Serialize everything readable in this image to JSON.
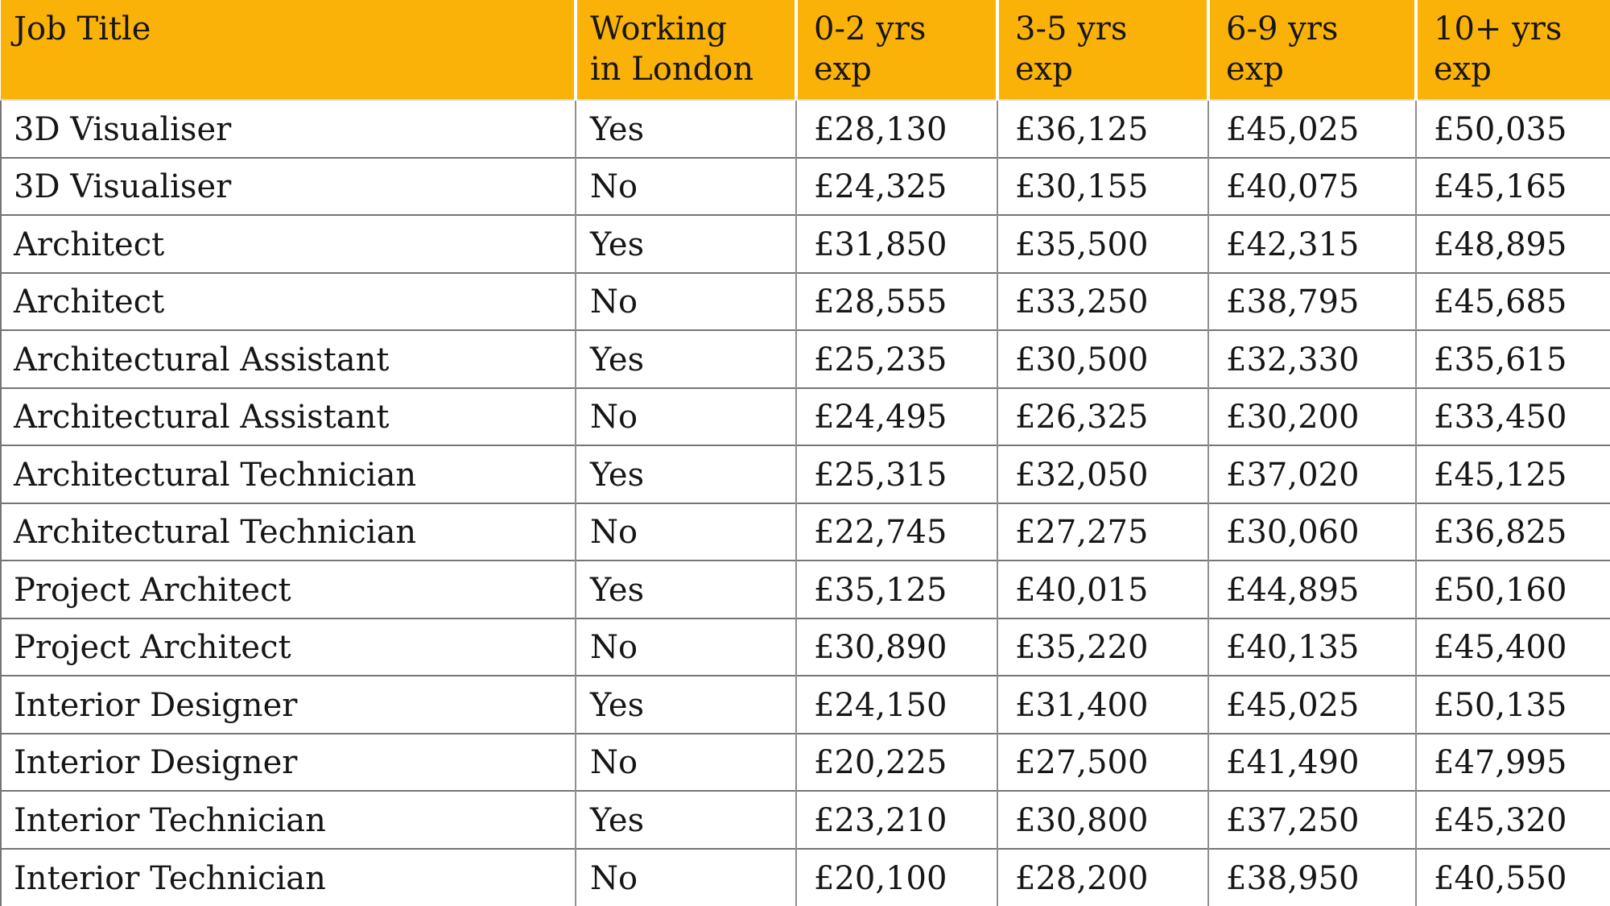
{
  "colors": {
    "header_bg": "#FAB208",
    "header_text": "#161616",
    "grid_horizontal": "#757575",
    "grid_vertical": "#8f8f8f"
  },
  "table": {
    "header_display": [
      "Job Title",
      "Working\nin London",
      "0-2 yrs\nexp",
      "3-5 yrs\nexp",
      "6-9 yrs\nexp",
      "10+ yrs\nexp"
    ]
  },
  "chart_data": {
    "type": "table",
    "columns": [
      "Job Title",
      "Working in London",
      "0-2 yrs exp",
      "3-5 yrs exp",
      "6-9 yrs exp",
      "10+ yrs exp"
    ],
    "rows": [
      [
        "3D Visualiser",
        "Yes",
        "£28,130",
        "£36,125",
        "£45,025",
        "£50,035"
      ],
      [
        "3D Visualiser",
        "No",
        "£24,325",
        "£30,155",
        "£40,075",
        "£45,165"
      ],
      [
        "Architect",
        "Yes",
        "£31,850",
        "£35,500",
        "£42,315",
        "£48,895"
      ],
      [
        "Architect",
        "No",
        "£28,555",
        "£33,250",
        "£38,795",
        "£45,685"
      ],
      [
        "Architectural Assistant",
        "Yes",
        "£25,235",
        "£30,500",
        "£32,330",
        "£35,615"
      ],
      [
        "Architectural Assistant",
        "No",
        "£24,495",
        "£26,325",
        "£30,200",
        "£33,450"
      ],
      [
        "Architectural Technician",
        "Yes",
        "£25,315",
        "£32,050",
        "£37,020",
        "£45,125"
      ],
      [
        "Architectural Technician",
        "No",
        "£22,745",
        "£27,275",
        "£30,060",
        "£36,825"
      ],
      [
        "Project Architect",
        "Yes",
        "£35,125",
        "£40,015",
        "£44,895",
        "£50,160"
      ],
      [
        "Project Architect",
        "No",
        "£30,890",
        "£35,220",
        "£40,135",
        "£45,400"
      ],
      [
        "Interior Designer",
        "Yes",
        "£24,150",
        "£31,400",
        "£45,025",
        "£50,135"
      ],
      [
        "Interior Designer",
        "No",
        "£20,225",
        "£27,500",
        "£41,490",
        "£47,995"
      ],
      [
        "Interior Technician",
        "Yes",
        "£23,210",
        "£30,800",
        "£37,250",
        "£45,320"
      ],
      [
        "Interior Technician",
        "No",
        "£20,100",
        "£28,200",
        "£38,950",
        "£40,550"
      ]
    ]
  }
}
